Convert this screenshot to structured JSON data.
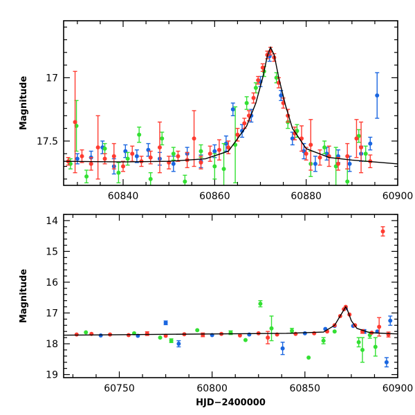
{
  "chart_data": [
    {
      "type": "scatter",
      "title": "",
      "xlabel": "",
      "ylabel": "Magnitude",
      "xlim": [
        60827,
        60900
      ],
      "ylim": [
        17.85,
        16.55
      ],
      "y_inverted": true,
      "x_ticks": [
        "60840",
        "60860",
        "60880",
        "60900"
      ],
      "y_ticks": [
        "17",
        "17.5"
      ],
      "grid": false,
      "legend": "none",
      "colors": {
        "red": "#ff3b30",
        "green": "#33e033",
        "blue": "#1a66e0",
        "model": "#000000"
      },
      "model_curve": [
        [
          60827,
          17.66
        ],
        [
          60840,
          17.665
        ],
        [
          60850,
          17.66
        ],
        [
          60858,
          17.64
        ],
        [
          60863,
          17.58
        ],
        [
          60867,
          17.38
        ],
        [
          60869,
          17.2
        ],
        [
          60870.5,
          17.0
        ],
        [
          60871.5,
          16.83
        ],
        [
          60872.2,
          16.76
        ],
        [
          60873,
          16.82
        ],
        [
          60874,
          17.0
        ],
        [
          60875.5,
          17.22
        ],
        [
          60877,
          17.4
        ],
        [
          60880,
          17.56
        ],
        [
          60885,
          17.63
        ],
        [
          60890,
          17.65
        ],
        [
          60900,
          17.68
        ]
      ],
      "series": [
        {
          "name": "",
          "color": "red",
          "points": [
            [
              60828,
              17.66,
              0.03
            ],
            [
              60829.5,
              17.35,
              0.4
            ],
            [
              60831,
              17.62,
              0.05
            ],
            [
              60833,
              17.68,
              0.05
            ],
            [
              60834.5,
              17.55,
              0.25
            ],
            [
              60836,
              17.64,
              0.04
            ],
            [
              60838,
              17.62,
              0.1
            ],
            [
              60840,
              17.7,
              0.04
            ],
            [
              60842,
              17.6,
              0.06
            ],
            [
              60844,
              17.66,
              0.04
            ],
            [
              60846,
              17.63,
              0.05
            ],
            [
              60848,
              17.55,
              0.2
            ],
            [
              60850,
              17.67,
              0.05
            ],
            [
              60852,
              17.62,
              0.04
            ],
            [
              60854,
              17.65,
              0.06
            ],
            [
              60855.5,
              17.48,
              0.22
            ],
            [
              60857,
              17.67,
              0.05
            ],
            [
              60859,
              17.6,
              0.06
            ],
            [
              60861,
              17.57,
              0.08
            ],
            [
              60863,
              17.55,
              0.05
            ],
            [
              60865,
              17.45,
              0.05
            ],
            [
              60866.5,
              17.36,
              0.04
            ],
            [
              60867.5,
              17.3,
              0.04
            ],
            [
              60868.5,
              17.16,
              0.04
            ],
            [
              60869.5,
              17.02,
              0.03
            ],
            [
              60870.5,
              16.92,
              0.03
            ],
            [
              60871.5,
              16.82,
              0.03
            ],
            [
              60872.2,
              16.79,
              0.03
            ],
            [
              60873,
              16.84,
              0.03
            ],
            [
              60874,
              17.04,
              0.04
            ],
            [
              60875,
              17.2,
              0.04
            ],
            [
              60876,
              17.3,
              0.05
            ],
            [
              60877.5,
              17.44,
              0.05
            ],
            [
              60879,
              17.48,
              0.1
            ],
            [
              60880,
              17.6,
              0.05
            ],
            [
              60881,
              17.53,
              0.2
            ],
            [
              60883,
              17.63,
              0.06
            ],
            [
              60885,
              17.62,
              0.08
            ],
            [
              60887,
              17.68,
              0.05
            ],
            [
              60889,
              17.62,
              0.1
            ],
            [
              60891,
              17.48,
              0.15
            ],
            [
              60892,
              17.55,
              0.2
            ],
            [
              60894,
              17.66,
              0.05
            ]
          ]
        },
        {
          "name": "",
          "color": "green",
          "points": [
            [
              60828.5,
              17.68,
              0.04
            ],
            [
              60829.8,
              17.38,
              0.2
            ],
            [
              60832,
              17.78,
              0.05
            ],
            [
              60836,
              17.56,
              0.04
            ],
            [
              60839,
              17.75,
              0.08
            ],
            [
              60841,
              17.64,
              0.05
            ],
            [
              60843.5,
              17.45,
              0.06
            ],
            [
              60846,
              17.8,
              0.05
            ],
            [
              60848.5,
              17.48,
              0.05
            ],
            [
              60851,
              17.6,
              0.05
            ],
            [
              60853.5,
              17.82,
              0.05
            ],
            [
              60857,
              17.58,
              0.05
            ],
            [
              60860,
              17.7,
              0.1
            ],
            [
              60862,
              17.72,
              0.2
            ],
            [
              60864.5,
              17.53,
              0.3
            ],
            [
              60867,
              17.2,
              0.05
            ],
            [
              60869,
              17.08,
              0.04
            ],
            [
              60870.8,
              16.95,
              0.04
            ],
            [
              60873.5,
              17.0,
              0.04
            ],
            [
              60876,
              17.35,
              0.05
            ],
            [
              60878,
              17.42,
              0.05
            ],
            [
              60881,
              17.68,
              0.1
            ],
            [
              60884,
              17.55,
              0.05
            ],
            [
              60886.5,
              17.7,
              0.15
            ],
            [
              60889,
              17.82,
              0.1
            ],
            [
              60891.5,
              17.46,
              0.05
            ],
            [
              60893,
              17.6,
              0.06
            ]
          ]
        },
        {
          "name": "",
          "color": "blue",
          "points": [
            [
              60830,
              17.64,
              0.04
            ],
            [
              60833,
              17.63,
              0.05
            ],
            [
              60835.5,
              17.55,
              0.05
            ],
            [
              60838,
              17.7,
              0.06
            ],
            [
              60840.5,
              17.58,
              0.05
            ],
            [
              60843,
              17.62,
              0.05
            ],
            [
              60845.5,
              17.57,
              0.05
            ],
            [
              60848,
              17.64,
              0.05
            ],
            [
              60851,
              17.68,
              0.06
            ],
            [
              60854,
              17.6,
              0.05
            ],
            [
              60857,
              17.66,
              0.05
            ],
            [
              60860,
              17.58,
              0.05
            ],
            [
              60862.5,
              17.52,
              0.06
            ],
            [
              60864,
              17.25,
              0.05
            ],
            [
              60866,
              17.42,
              0.05
            ],
            [
              60868,
              17.3,
              0.05
            ],
            [
              60870,
              17.03,
              0.04
            ],
            [
              60872,
              16.83,
              0.04
            ],
            [
              60874.5,
              17.14,
              0.04
            ],
            [
              60877,
              17.48,
              0.05
            ],
            [
              60879.5,
              17.58,
              0.06
            ],
            [
              60882,
              17.68,
              0.06
            ],
            [
              60884.5,
              17.6,
              0.05
            ],
            [
              60887,
              17.62,
              0.05
            ],
            [
              60889.5,
              17.68,
              0.06
            ],
            [
              60892,
              17.6,
              0.06
            ],
            [
              60894,
              17.52,
              0.05
            ],
            [
              60895.5,
              17.14,
              0.18
            ]
          ]
        }
      ]
    },
    {
      "type": "scatter",
      "title": "",
      "xlabel": "HJD−2400000",
      "ylabel": "Magnitude",
      "xlim": [
        60720,
        60900
      ],
      "ylim": [
        19.1,
        13.8
      ],
      "y_inverted": true,
      "x_ticks": [
        "60750",
        "60800",
        "60850",
        "60900"
      ],
      "y_ticks": [
        "14",
        "15",
        "16",
        "17",
        "18",
        "19"
      ],
      "grid": false,
      "legend": "none",
      "colors": {
        "red": "#ff3b30",
        "green": "#33e033",
        "blue": "#1a66e0",
        "model": "#000000"
      },
      "model_curve": [
        [
          60720,
          17.72
        ],
        [
          60760,
          17.7
        ],
        [
          60800,
          17.68
        ],
        [
          60840,
          17.66
        ],
        [
          60860,
          17.62
        ],
        [
          60866,
          17.4
        ],
        [
          60869,
          17.1
        ],
        [
          60871,
          16.9
        ],
        [
          60872,
          16.8
        ],
        [
          60873,
          16.92
        ],
        [
          60875,
          17.25
        ],
        [
          60878,
          17.5
        ],
        [
          60885,
          17.64
        ],
        [
          60900,
          17.68
        ]
      ],
      "series": [
        {
          "name": "",
          "color": "red",
          "points": [
            [
              60727,
              17.7,
              0.05
            ],
            [
              60735,
              17.68,
              0.05
            ],
            [
              60745,
              17.7,
              0.05
            ],
            [
              60755,
              17.72,
              0.05
            ],
            [
              60765,
              17.67,
              0.06
            ],
            [
              60775,
              17.74,
              0.05
            ],
            [
              60785,
              17.69,
              0.05
            ],
            [
              60795,
              17.71,
              0.06
            ],
            [
              60805,
              17.68,
              0.05
            ],
            [
              60815,
              17.73,
              0.05
            ],
            [
              60825,
              17.66,
              0.05
            ],
            [
              60830,
              17.8,
              0.2
            ],
            [
              60835,
              17.7,
              0.05
            ],
            [
              60845,
              17.68,
              0.05
            ],
            [
              60855,
              17.66,
              0.05
            ],
            [
              60862,
              17.6,
              0.05
            ],
            [
              60866,
              17.4,
              0.05
            ],
            [
              60869,
              17.1,
              0.04
            ],
            [
              60871,
              16.88,
              0.04
            ],
            [
              60872,
              16.8,
              0.04
            ],
            [
              60874,
              17.05,
              0.04
            ],
            [
              60877,
              17.4,
              0.05
            ],
            [
              60881,
              17.6,
              0.06
            ],
            [
              60886,
              17.64,
              0.05
            ],
            [
              60890,
              17.45,
              0.3
            ],
            [
              60892,
              14.35,
              0.15
            ],
            [
              60895,
              17.7,
              0.08
            ]
          ]
        },
        {
          "name": "",
          "color": "green",
          "points": [
            [
              60732,
              17.63,
              0.05
            ],
            [
              60758,
              17.66,
              0.05
            ],
            [
              60772,
              17.8,
              0.05
            ],
            [
              60778,
              17.9,
              0.06
            ],
            [
              60792,
              17.56,
              0.05
            ],
            [
              60810,
              17.64,
              0.06
            ],
            [
              60818,
              17.88,
              0.05
            ],
            [
              60826,
              16.7,
              0.1
            ],
            [
              60832,
              17.5,
              0.4
            ],
            [
              60843,
              17.58,
              0.08
            ],
            [
              60852,
              18.45,
              0.05
            ],
            [
              60860,
              17.9,
              0.1
            ],
            [
              60866,
              17.6,
              0.05
            ],
            [
              60879,
              17.95,
              0.15
            ],
            [
              60881,
              18.2,
              0.4
            ],
            [
              60885,
              17.72,
              0.1
            ],
            [
              60888,
              18.1,
              0.3
            ]
          ]
        },
        {
          "name": "",
          "color": "blue",
          "points": [
            [
              60740,
              17.73,
              0.05
            ],
            [
              60760,
              17.74,
              0.05
            ],
            [
              60775,
              17.32,
              0.06
            ],
            [
              60782,
              18.0,
              0.1
            ],
            [
              60800,
              17.72,
              0.05
            ],
            [
              60820,
              17.7,
              0.05
            ],
            [
              60838,
              18.15,
              0.2
            ],
            [
              60850,
              17.66,
              0.05
            ],
            [
              60861,
              17.52,
              0.05
            ],
            [
              60866,
              17.42,
              0.05
            ],
            [
              60872,
              16.85,
              0.04
            ],
            [
              60876,
              17.42,
              0.05
            ],
            [
              60882,
              17.6,
              0.06
            ],
            [
              60889,
              17.6,
              0.05
            ],
            [
              60894,
              18.6,
              0.15
            ],
            [
              60896,
              17.25,
              0.15
            ]
          ]
        }
      ]
    }
  ]
}
